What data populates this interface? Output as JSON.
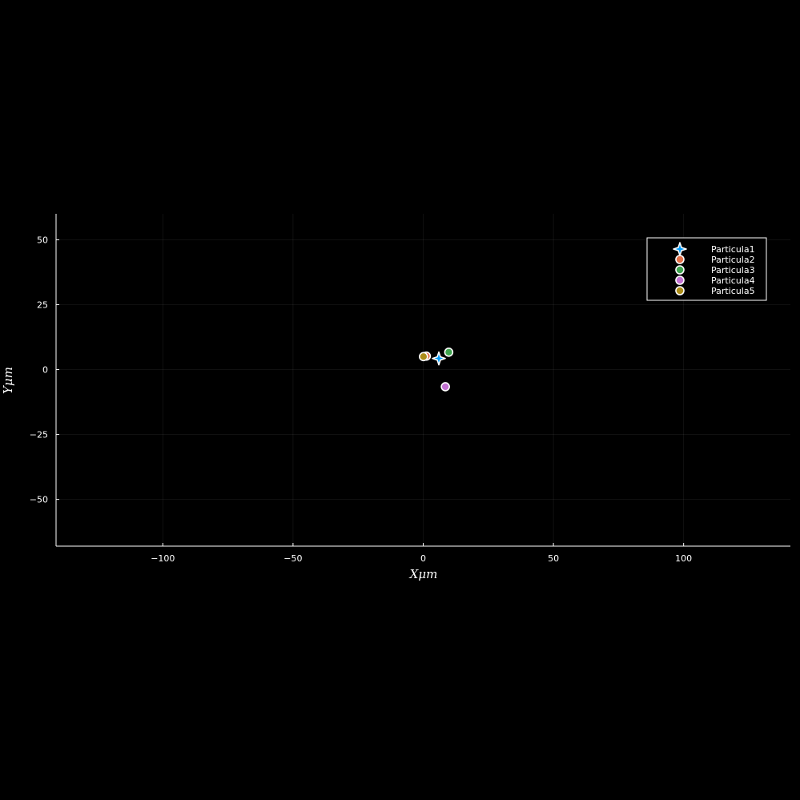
{
  "chart_data": {
    "type": "scatter",
    "title": "",
    "xlabel": "Xμm",
    "ylabel": "Yμm",
    "xlim": [
      -141,
      141
    ],
    "ylim": [
      -68,
      60
    ],
    "xticks": [
      -100,
      -50,
      0,
      50,
      100
    ],
    "xtick_labels": [
      "−100",
      "−50",
      "0",
      "50",
      "100"
    ],
    "yticks": [
      -50,
      -25,
      0,
      25,
      50
    ],
    "ytick_labels": [
      "−50",
      "−25",
      "0",
      "25",
      "50"
    ],
    "grid": true,
    "legend_position": "top-right",
    "background": "#000000",
    "foreground": "#ffffff",
    "series": [
      {
        "name": "Particula1",
        "marker": "star4",
        "color": "#009AFA",
        "x": [
          6
        ],
        "y": [
          4.3
        ]
      },
      {
        "name": "Particula2",
        "marker": "circle",
        "color": "#E36F47",
        "x": [
          1.2
        ],
        "y": [
          5.2
        ]
      },
      {
        "name": "Particula3",
        "marker": "circle",
        "color": "#3EA44E",
        "x": [
          9.8
        ],
        "y": [
          6.7
        ]
      },
      {
        "name": "Particula4",
        "marker": "circle",
        "color": "#C271D2",
        "x": [
          8.5
        ],
        "y": [
          -6.6
        ]
      },
      {
        "name": "Particula5",
        "marker": "circle",
        "color": "#AC8D18",
        "x": [
          0.1
        ],
        "y": [
          5
        ]
      }
    ]
  }
}
